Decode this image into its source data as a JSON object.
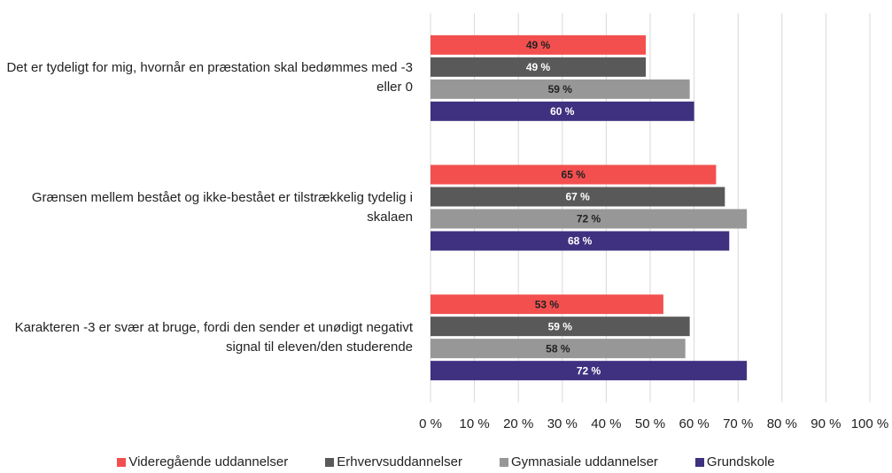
{
  "chart_data": {
    "type": "barh",
    "categories": [
      "Det er tydeligt for mig, hvornår en præstation skal bedømmes med -3 eller 0",
      "Grænsen mellem bestået og ikke-bestået er tilstrækkelig tydelig i skalaen",
      "Karakteren -3 er svær at bruge, fordi den sender et unødigt negativt signal til eleven/den studerende"
    ],
    "series": [
      {
        "name": "Videregående uddannelser",
        "color": "#f44f4f",
        "values": [
          49,
          65,
          53
        ],
        "value_labels": [
          "49 %",
          "65 %",
          "53 %"
        ]
      },
      {
        "name": "Erhvervsuddannelser",
        "color": "#595959",
        "values": [
          49,
          67,
          59
        ],
        "value_labels": [
          "49 %",
          "67 %",
          "59 %"
        ]
      },
      {
        "name": "Gymnasiale uddannelser",
        "color": "#979797",
        "values": [
          59,
          72,
          58
        ],
        "value_labels": [
          "59 %",
          "72 %",
          "58 %"
        ]
      },
      {
        "name": "Grundskole",
        "color": "#3f3180",
        "values": [
          60,
          68,
          72
        ],
        "value_labels": [
          "60 %",
          "68 %",
          "72 %"
        ]
      }
    ],
    "xlim": [
      0,
      100
    ],
    "xticks": [
      {
        "value": 0,
        "label": "0 %"
      },
      {
        "value": 10,
        "label": "10 %"
      },
      {
        "value": 20,
        "label": "20 %"
      },
      {
        "value": 30,
        "label": "30 %"
      },
      {
        "value": 40,
        "label": "40 %"
      },
      {
        "value": 50,
        "label": "50 %"
      },
      {
        "value": 60,
        "label": "60 %"
      },
      {
        "value": 70,
        "label": "70 %"
      },
      {
        "value": 80,
        "label": "80 %"
      },
      {
        "value": 90,
        "label": "90 %"
      },
      {
        "value": 100,
        "label": "100 %"
      }
    ],
    "grid": true,
    "legend": "bottom"
  }
}
